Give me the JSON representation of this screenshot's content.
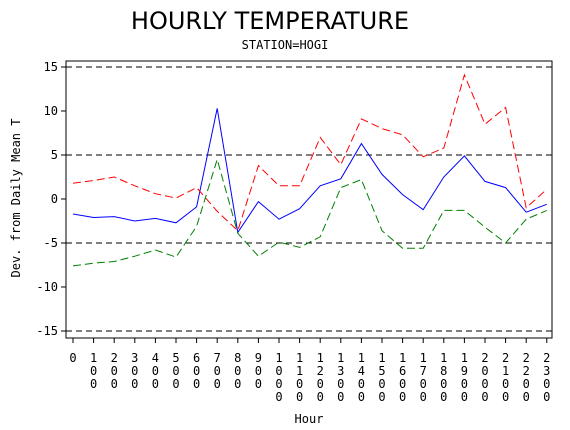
{
  "chart_data": {
    "type": "line",
    "title": "HOURLY TEMPERATURE",
    "subtitle": "STATION=HOGI",
    "xlabel": "Hour",
    "ylabel": "Dev. from Daily Mean T",
    "x": [
      0,
      100,
      200,
      300,
      400,
      500,
      600,
      700,
      800,
      900,
      1000,
      1100,
      1200,
      1300,
      1400,
      1500,
      1600,
      1700,
      1800,
      1900,
      2000,
      2100,
      2200,
      2300
    ],
    "x_tick_labels": [
      "0",
      "100",
      "200",
      "300",
      "400",
      "500",
      "600",
      "700",
      "800",
      "900",
      "1000",
      "1100",
      "1200",
      "1300",
      "1400",
      "1500",
      "1600",
      "1700",
      "1800",
      "1900",
      "2000",
      "2100",
      "2200",
      "2300"
    ],
    "ylim": [
      -15,
      15
    ],
    "yticks": [
      -15,
      -10,
      -5,
      0,
      5,
      10,
      15
    ],
    "reference_lines": [
      -15,
      -5,
      5,
      15
    ],
    "series": [
      {
        "color": "#0000ff",
        "dash": "solid",
        "values": [
          -1.7,
          -2.1,
          -2.0,
          -2.5,
          -2.2,
          -2.7,
          -0.9,
          10.3,
          -3.8,
          -0.3,
          -2.3,
          -1.1,
          1.5,
          2.3,
          6.3,
          2.8,
          0.5,
          -1.2,
          2.5,
          4.9,
          2.0,
          1.3,
          -1.5,
          -0.6
        ]
      },
      {
        "color": "#ff0000",
        "dash": "dashed",
        "values": [
          1.8,
          2.1,
          2.5,
          1.5,
          0.6,
          0.1,
          1.3,
          -1.4,
          -3.6,
          3.8,
          1.5,
          1.5,
          7.0,
          3.9,
          9.1,
          8.0,
          7.3,
          4.8,
          5.8,
          14.1,
          8.5,
          10.4,
          -1.0,
          1.1
        ]
      },
      {
        "color": "#008000",
        "dash": "dashed",
        "values": [
          -7.6,
          -7.3,
          -7.1,
          -6.5,
          -5.8,
          -6.6,
          -3.1,
          4.5,
          -3.9,
          -6.5,
          -4.9,
          -5.5,
          -4.3,
          1.3,
          2.2,
          -3.6,
          -5.6,
          -5.6,
          -1.3,
          -1.3,
          -3.2,
          -5.0,
          -2.3,
          -1.3
        ]
      }
    ]
  }
}
